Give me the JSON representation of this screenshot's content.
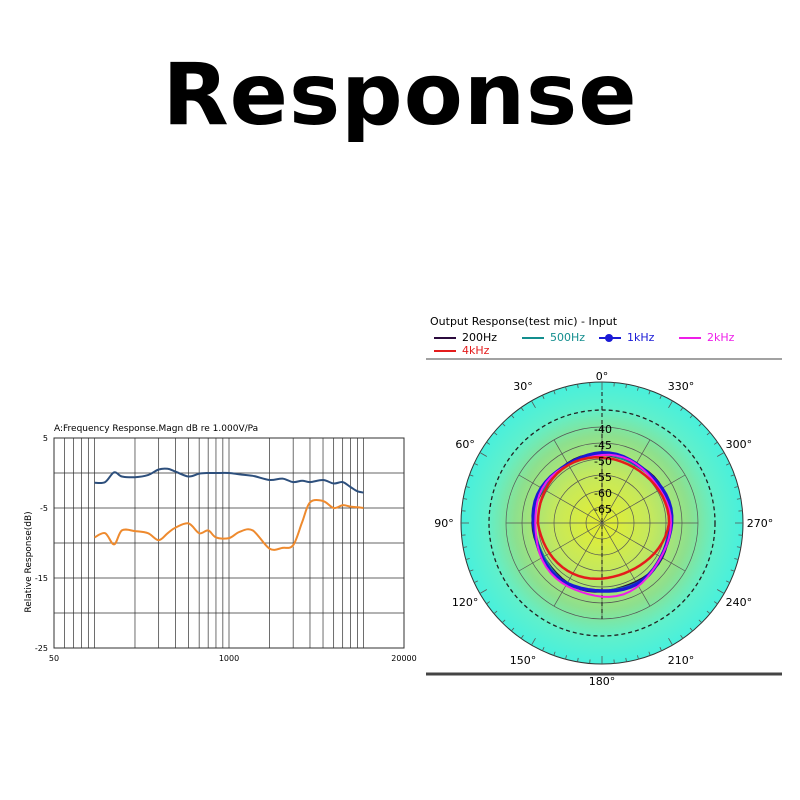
{
  "page": {
    "title": "Response"
  },
  "chart_data": [
    {
      "type": "line",
      "title": "A:Frequency Response.Magn dB re 1.000V/Pa",
      "xlabel": "",
      "ylabel": "Relative Response(dB)",
      "x_scale": "log",
      "xlim": [
        50,
        20000
      ],
      "ylim": [
        -25,
        5
      ],
      "x_ticks": [
        "50",
        "1000",
        "20000"
      ],
      "y_ticks": [
        "5",
        "-5",
        "-15",
        "-25"
      ],
      "grid": true,
      "colors": [
        "#2d4f7c",
        "#ee8a2e"
      ],
      "series": [
        {
          "x": [
            100,
            120,
            140,
            160,
            200,
            250,
            300,
            350,
            400,
            500,
            600,
            700,
            800,
            1000,
            1200,
            1500,
            2000,
            2500,
            3000,
            3500,
            4000,
            5000,
            6000,
            7000,
            8000,
            9000,
            10000
          ],
          "values": [
            -1.4,
            -1.3,
            0.1,
            -0.5,
            -0.6,
            -0.3,
            0.5,
            0.6,
            0.2,
            -0.5,
            -0.1,
            0.0,
            0.0,
            0.0,
            -0.2,
            -0.4,
            -1.0,
            -0.8,
            -1.3,
            -1.1,
            -1.3,
            -1.0,
            -1.5,
            -1.3,
            -2.0,
            -2.6,
            -2.8
          ]
        },
        {
          "x": [
            100,
            120,
            140,
            160,
            200,
            250,
            300,
            350,
            400,
            500,
            600,
            700,
            800,
            1000,
            1200,
            1500,
            2000,
            2500,
            3000,
            3500,
            4000,
            5000,
            6000,
            7000,
            8000,
            9000,
            10000
          ],
          "values": [
            -9.2,
            -8.6,
            -10.2,
            -8.2,
            -8.3,
            -8.6,
            -9.6,
            -8.6,
            -7.8,
            -7.2,
            -8.6,
            -8.2,
            -9.2,
            -9.3,
            -8.4,
            -8.2,
            -10.8,
            -10.7,
            -10.3,
            -7.0,
            -4.2,
            -4.0,
            -5.0,
            -4.6,
            -4.8,
            -4.9,
            -5.0
          ]
        }
      ]
    },
    {
      "type": "polar",
      "title": "Output Response(test mic) - Input",
      "r_ticks": [
        "-40",
        "-45",
        "-50",
        "-55",
        "-60",
        "-65"
      ],
      "r_range": [
        -70,
        -40
      ],
      "angle_ticks": [
        "0°",
        "30°",
        "60°",
        "90°",
        "120°",
        "150°",
        "180°",
        "210°",
        "240°",
        "270°",
        "300°",
        "330°"
      ],
      "angle_direction": "counterclockwise",
      "series": [
        {
          "name": "200Hz",
          "color": "#2b0b3d",
          "r": -48.6
        },
        {
          "name": "500Hz",
          "color": "#138e8e",
          "r": -48.8
        },
        {
          "name": "1kHz",
          "color": "#1a1ad6",
          "r": -48.4
        },
        {
          "name": "2kHz",
          "color": "#ee1ee8",
          "r": -48.8
        },
        {
          "name": "4kHz",
          "color": "#e41c1c",
          "r": -49.5
        }
      ]
    }
  ]
}
